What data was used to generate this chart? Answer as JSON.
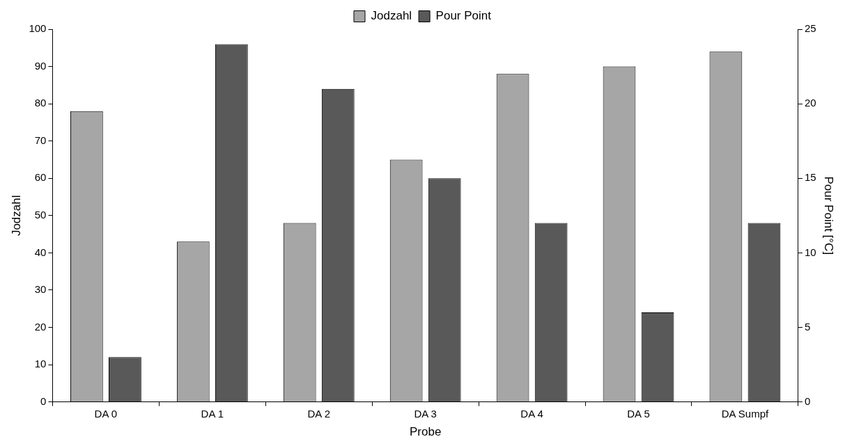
{
  "chart_data": {
    "type": "bar",
    "xlabel": "Probe",
    "ylabel": "Jodzahl",
    "y2label": "Pour Point [°C]",
    "categories": [
      "DA 0",
      "DA 1",
      "DA 2",
      "DA 3",
      "DA 4",
      "DA 5",
      "DA Sumpf"
    ],
    "series": [
      {
        "name": "Jodzahl",
        "color": "#a6a6a6",
        "values": [
          78,
          43,
          48,
          65,
          88,
          90,
          94
        ]
      },
      {
        "name": "Pour Point",
        "color": "#595959",
        "axis": "y2",
        "values": [
          3,
          24,
          21,
          15,
          12,
          6,
          12
        ]
      }
    ],
    "ylim": [
      0,
      100
    ],
    "yticks": [
      0,
      10,
      20,
      30,
      40,
      50,
      60,
      70,
      80,
      90,
      100
    ],
    "y2lim": [
      0,
      25
    ],
    "y2ticks": [
      0,
      5,
      10,
      15,
      20,
      25
    ],
    "grid": false,
    "legend": "top"
  }
}
